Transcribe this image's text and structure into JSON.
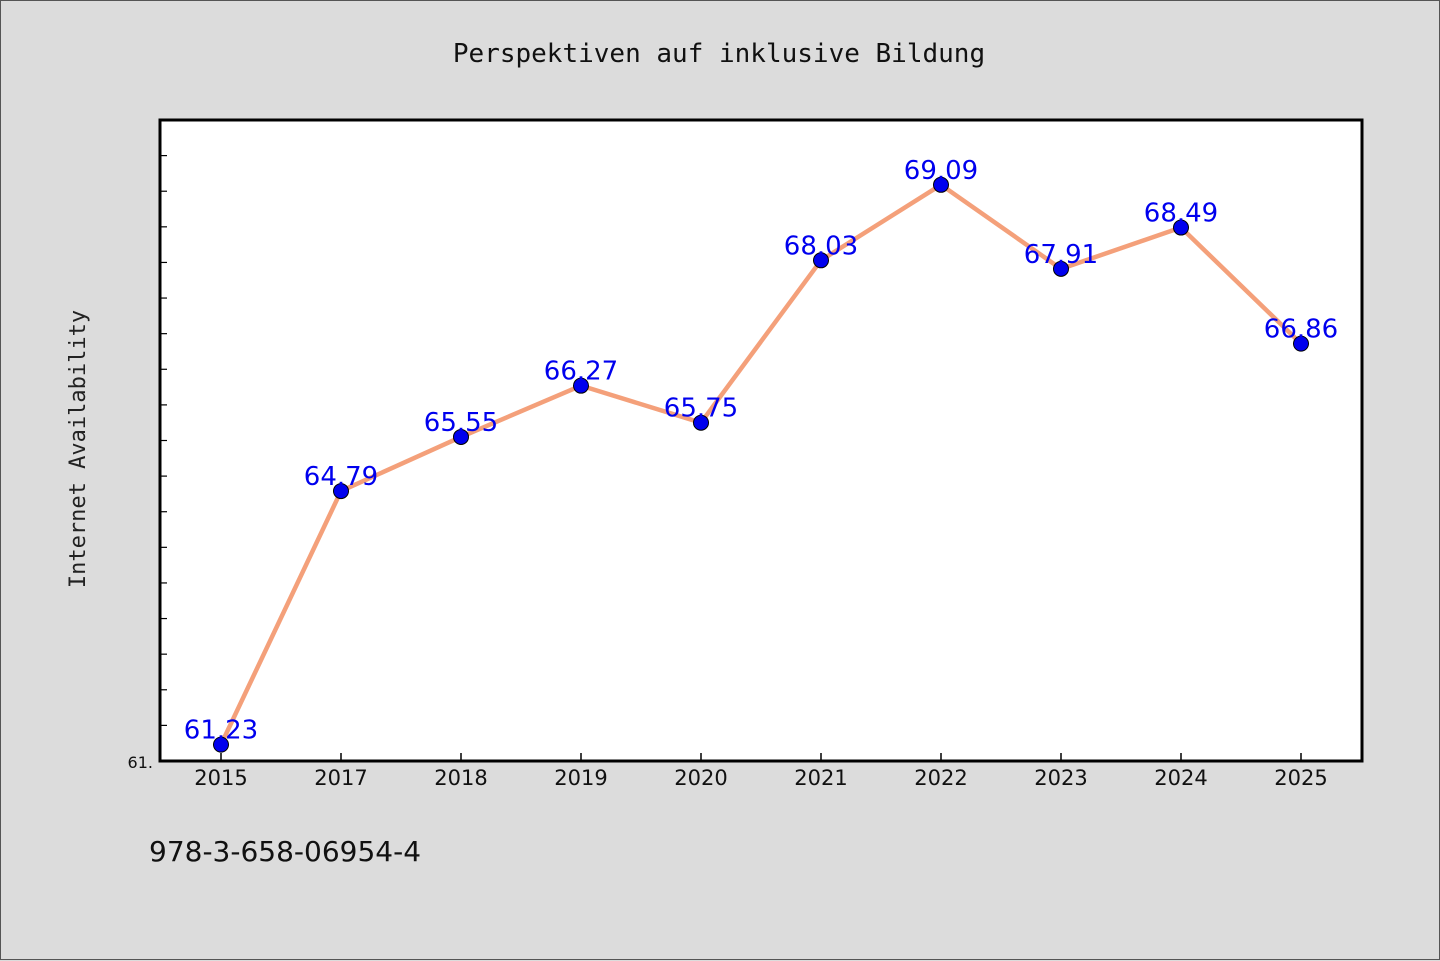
{
  "chart_data": {
    "type": "line",
    "title": "Perspektiven auf inklusive Bildung",
    "xlabel": "",
    "ylabel": "Internet Availability",
    "categories": [
      "2015",
      "2017",
      "2018",
      "2019",
      "2020",
      "2021",
      "2022",
      "2023",
      "2024",
      "2025"
    ],
    "series": [
      {
        "values": [
          61.23,
          64.79,
          65.55,
          66.27,
          65.75,
          68.03,
          69.09,
          67.91,
          68.49,
          66.86
        ],
        "labels": [
          "61.23",
          "64.79",
          "65.55",
          "66.27",
          "65.75",
          "68.03",
          "69.09",
          "67.91",
          "68.49",
          "66.86"
        ]
      }
    ],
    "ylim": [
      61.0,
      70.0
    ],
    "y_tick_label": "61.",
    "grid": false,
    "legend": "none",
    "colors": {
      "line": "#f4a07a",
      "marker": "#0000ee",
      "label": "#0000ee",
      "background": "#dcdcdc",
      "plot_background": "#ffffff"
    }
  },
  "footer": {
    "text": "978-3-658-06954-4"
  }
}
